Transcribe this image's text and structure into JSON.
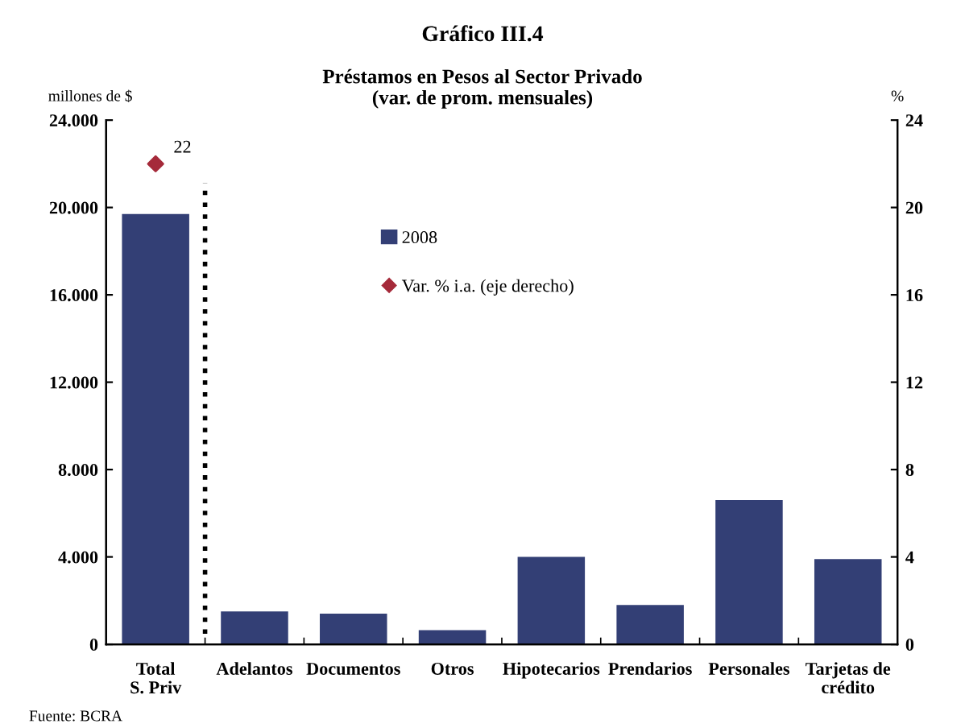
{
  "chart_data": {
    "type": "bar",
    "title": "Gráfico III.4",
    "subtitle": "Préstamos en Pesos al Sector Privado\n(var. de prom. mensuales)",
    "ylabel": "millones de $",
    "y2label": "%",
    "categories": [
      "Total\nS. Priv",
      "Adelantos",
      "Documentos",
      "Otros",
      "Hipotecarios",
      "Prendarios",
      "Personales",
      "Tarjetas de\ncrédito"
    ],
    "series": [
      {
        "name": "2008",
        "color": "#333f75",
        "values": [
          19700,
          1500,
          1400,
          650,
          4000,
          1800,
          6600,
          3900
        ]
      },
      {
        "name": "Var. % i.a. (eje derecho)",
        "type": "scatter",
        "axis": "y2",
        "color": "#a52a3a",
        "marker": "diamond",
        "values": [
          22,
          null,
          null,
          null,
          null,
          null,
          null,
          null
        ],
        "value_labels": [
          "22",
          null,
          null,
          null,
          null,
          null,
          null,
          null
        ]
      }
    ],
    "ylim": [
      0,
      24000
    ],
    "yticks": [
      {
        "value": 0,
        "label": "0"
      },
      {
        "value": 4000,
        "label": "4.000"
      },
      {
        "value": 8000,
        "label": "8.000"
      },
      {
        "value": 12000,
        "label": "12.000"
      },
      {
        "value": 16000,
        "label": "16.000"
      },
      {
        "value": 20000,
        "label": "20.000"
      },
      {
        "value": 24000,
        "label": "24.000"
      }
    ],
    "y2lim": [
      0,
      24
    ],
    "y2ticks": [
      0,
      4,
      8,
      12,
      16,
      20,
      24
    ],
    "legend": "top",
    "grid": false,
    "annotations": [
      "Fuente: BCRA"
    ]
  }
}
